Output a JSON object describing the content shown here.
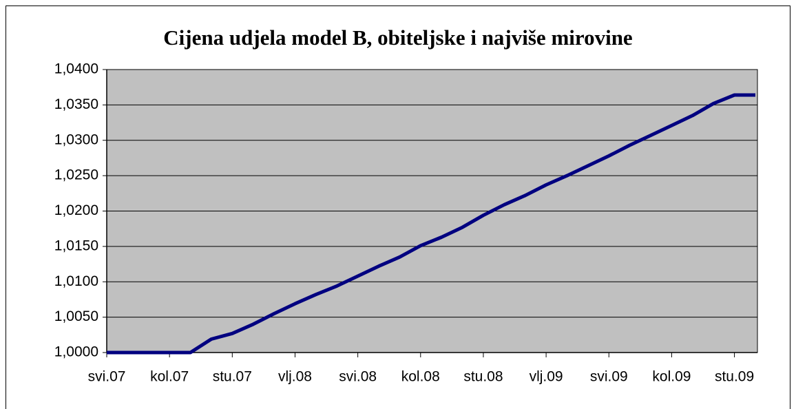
{
  "chart_data": {
    "type": "line",
    "title": "Cijena udjela model B, obiteljske i najviše mirovine",
    "categories": [
      "svi.07",
      null,
      null,
      "kol.07",
      null,
      null,
      "stu.07",
      null,
      null,
      "vlj.08",
      null,
      null,
      "svi.08",
      null,
      null,
      "kol.08",
      null,
      null,
      "stu.08",
      null,
      null,
      "vlj.09",
      null,
      null,
      "svi.09",
      null,
      null,
      "kol.09",
      null,
      null,
      "stu.09",
      null
    ],
    "series": [
      {
        "name": null,
        "color": "#000080",
        "values": [
          1.0,
          1.0,
          1.0,
          1.0,
          1.0,
          1.0019,
          1.0027,
          1.004,
          1.0055,
          1.0069,
          1.0082,
          1.0094,
          1.0108,
          1.0122,
          1.0135,
          1.0151,
          1.0163,
          1.0177,
          1.0194,
          1.0209,
          1.0222,
          1.0237,
          1.025,
          1.0264,
          1.0278,
          1.0293,
          1.0307,
          1.0321,
          1.0335,
          1.0352,
          1.0364,
          1.0364
        ]
      }
    ],
    "ylim": [
      1.0,
      1.04
    ],
    "yticks": [
      {
        "value": 1.0,
        "label": "1,0000"
      },
      {
        "value": 1.005,
        "label": "1,0050"
      },
      {
        "value": 1.01,
        "label": "1,0100"
      },
      {
        "value": 1.015,
        "label": "1,0150"
      },
      {
        "value": 1.02,
        "label": "1,0200"
      },
      {
        "value": 1.025,
        "label": "1,0250"
      },
      {
        "value": 1.03,
        "label": "1,0300"
      },
      {
        "value": 1.035,
        "label": "1,0350"
      },
      {
        "value": 1.04,
        "label": "1,0400"
      }
    ],
    "grid": true,
    "plot_background": "#c0c0c0"
  }
}
